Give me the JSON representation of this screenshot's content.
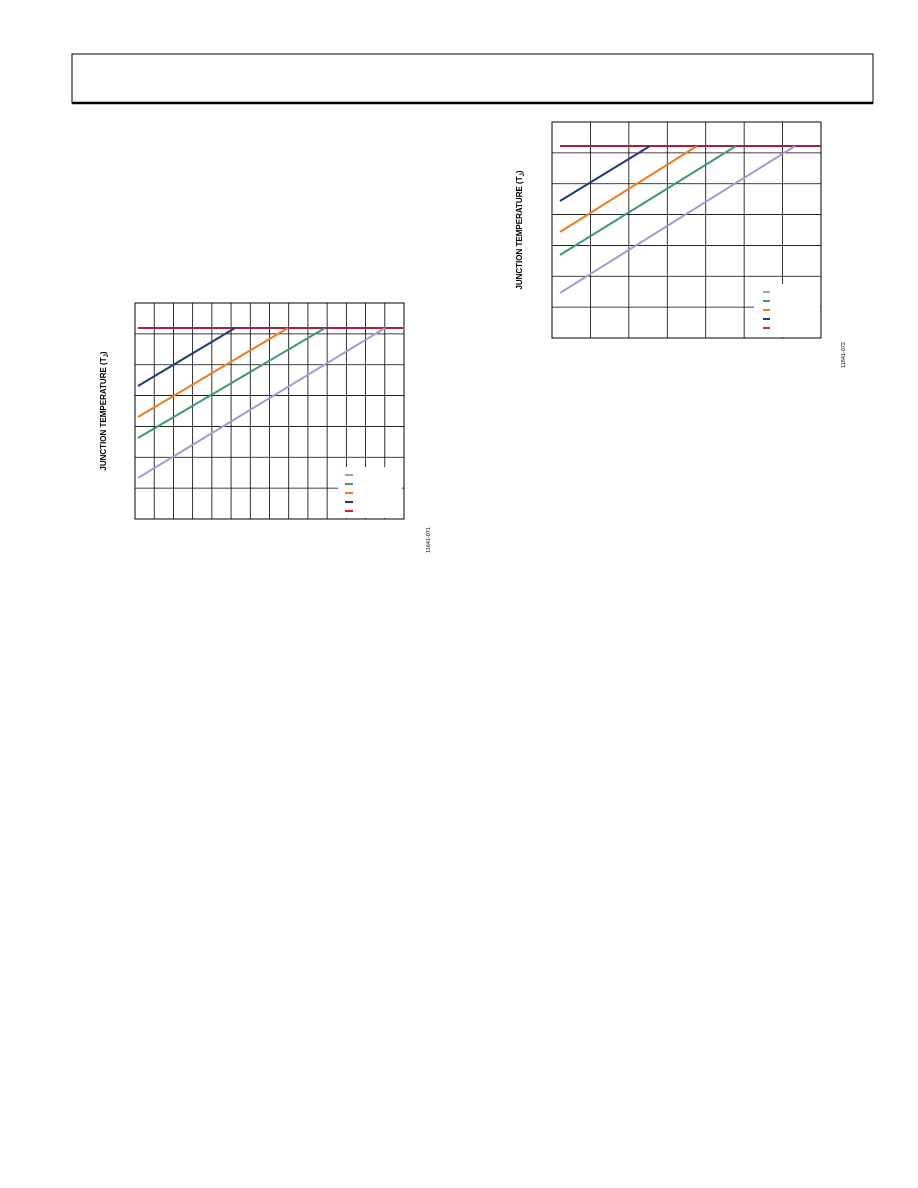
{
  "figures": [
    {
      "y_axis_label": {
        "text": "JUNCTION TEMPERATURE (T",
        "subscript": "J",
        "close": ")"
      },
      "figure_id": "11641-071"
    },
    {
      "y_axis_label": {
        "text": "JUNCTION TEMPERATURE (T",
        "subscript": "J",
        "close": ")"
      },
      "figure_id": "11641-072"
    }
  ]
}
